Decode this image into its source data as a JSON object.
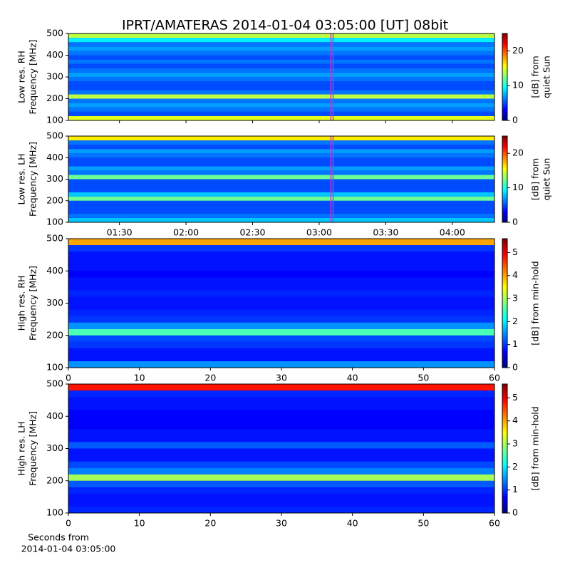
{
  "title": "IPRT/AMATERAS 2014-01-04 03:05:00 [UT]   08bit",
  "chart_data": [
    {
      "type": "spectrogram",
      "ylabel": [
        "Low res. RH",
        "Frequency [MHz]"
      ],
      "xlim": [
        67,
        259
      ],
      "ylim": [
        100,
        500
      ],
      "yticks": [
        100,
        200,
        300,
        400,
        500
      ],
      "markers": [
        185.3,
        186.3
      ],
      "marker_color": "#cc33cc",
      "freq_bins": [
        100,
        120,
        140,
        160,
        180,
        200,
        220,
        240,
        260,
        280,
        300,
        320,
        340,
        360,
        380,
        400,
        420,
        440,
        460,
        480,
        500
      ],
      "values": [
        15,
        5,
        6,
        7,
        6,
        14,
        6,
        5,
        5,
        6,
        7,
        6,
        5,
        6,
        5,
        6,
        7,
        6,
        9,
        14
      ],
      "clim": [
        0,
        25
      ],
      "cticks": [
        0,
        10,
        20
      ],
      "clabel": [
        "[dB] from",
        "quiet Sun"
      ]
    },
    {
      "type": "spectrogram",
      "ylabel": [
        "Low res. LH",
        "Frequency [MHz]"
      ],
      "xlim": [
        67,
        259
      ],
      "ylim": [
        100,
        500
      ],
      "yticks": [
        100,
        200,
        300,
        400,
        500
      ],
      "xticks": [
        {
          "value": 90,
          "label": "01:30"
        },
        {
          "value": 120,
          "label": "02:00"
        },
        {
          "value": 150,
          "label": "02:30"
        },
        {
          "value": 180,
          "label": "03:00"
        },
        {
          "value": 210,
          "label": "03:30"
        },
        {
          "value": 240,
          "label": "04:00"
        }
      ],
      "markers": [
        185.3,
        186.3
      ],
      "marker_color": "#cc33cc",
      "freq_bins": [
        100,
        120,
        140,
        160,
        180,
        200,
        220,
        240,
        260,
        280,
        300,
        320,
        340,
        360,
        380,
        400,
        420,
        440,
        460,
        480,
        500
      ],
      "values": [
        8,
        6,
        5,
        5,
        5,
        12,
        8,
        5,
        5,
        5,
        12,
        6,
        7,
        5,
        5,
        6,
        7,
        5,
        6,
        16
      ],
      "clim": [
        0,
        25
      ],
      "cticks": [
        0,
        10,
        20
      ],
      "clabel": [
        "[dB] from",
        "quiet Sun"
      ]
    },
    {
      "type": "spectrogram",
      "ylabel": [
        "High res. RH",
        "Frequency [MHz]"
      ],
      "xlim": [
        0,
        60
      ],
      "ylim": [
        100,
        500
      ],
      "yticks": [
        100,
        200,
        300,
        400,
        500
      ],
      "xticks": [
        0,
        10,
        20,
        30,
        40,
        50,
        60
      ],
      "freq_bins": [
        100,
        120,
        140,
        160,
        180,
        200,
        220,
        240,
        260,
        280,
        300,
        320,
        340,
        360,
        380,
        400,
        420,
        440,
        460,
        480,
        500
      ],
      "values": [
        1.5,
        0.8,
        0.8,
        1.0,
        1.1,
        2.5,
        1.5,
        1.0,
        0.9,
        0.8,
        0.8,
        0.9,
        0.8,
        0.8,
        0.7,
        0.8,
        0.8,
        0.8,
        1.0,
        4.0
      ],
      "clim": [
        0,
        5.6
      ],
      "cticks": [
        0,
        1,
        2,
        3,
        4,
        5
      ],
      "clabel": [
        "[dB] from min-hold"
      ]
    },
    {
      "type": "spectrogram",
      "ylabel": [
        "High res. LH",
        "Frequency [MHz]"
      ],
      "xlim": [
        0,
        60
      ],
      "ylim": [
        100,
        500
      ],
      "yticks": [
        100,
        200,
        300,
        400,
        500
      ],
      "xticks": [
        0,
        10,
        20,
        30,
        40,
        50,
        60
      ],
      "xlabel": [
        "Seconds from",
        "2014-01-04 03:05:00"
      ],
      "freq_bins": [
        100,
        120,
        140,
        160,
        180,
        200,
        220,
        240,
        260,
        280,
        300,
        320,
        340,
        360,
        380,
        400,
        420,
        440,
        460,
        480,
        500
      ],
      "values": [
        0.9,
        0.8,
        0.8,
        0.9,
        1.2,
        3.0,
        1.4,
        1.1,
        0.8,
        0.8,
        1.2,
        0.8,
        0.8,
        0.7,
        0.7,
        0.7,
        0.8,
        0.8,
        0.9,
        4.8
      ],
      "clim": [
        0,
        5.6
      ],
      "cticks": [
        0,
        1,
        2,
        3,
        4,
        5
      ],
      "clabel": [
        "[dB] from min-hold"
      ]
    }
  ]
}
